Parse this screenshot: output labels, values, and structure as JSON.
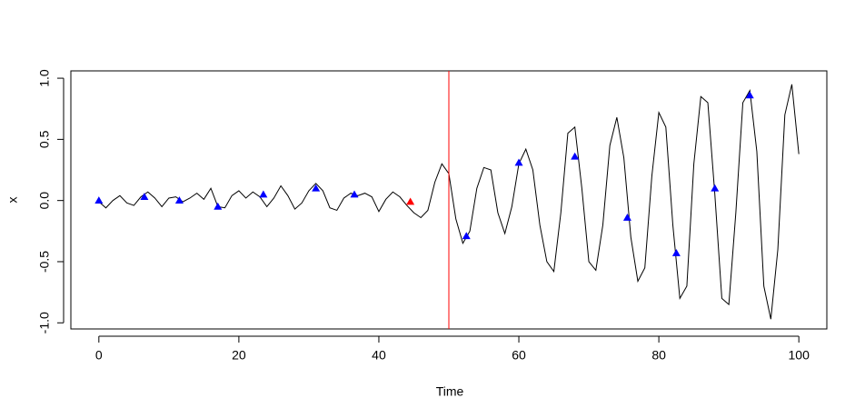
{
  "chart_data": {
    "type": "line",
    "xlabel": "Time",
    "ylabel": "x",
    "xlim": [
      -4,
      104
    ],
    "ylim": [
      -1.05,
      1.06
    ],
    "xticks": [
      0,
      20,
      40,
      60,
      80,
      100
    ],
    "yticks": [
      {
        "value": -1,
        "label": "-1.0"
      },
      -0.5,
      {
        "value": 0,
        "label": "0.0"
      },
      0.5,
      {
        "value": 1,
        "label": "1.0"
      }
    ],
    "vline": {
      "x": 50,
      "color": "#ff0000"
    },
    "series": [
      {
        "color": "#000000",
        "x": [
          0,
          1,
          2,
          3,
          4,
          5,
          6,
          7,
          8,
          9,
          10,
          11,
          12,
          13,
          14,
          15,
          16,
          17,
          18,
          19,
          20,
          21,
          22,
          23,
          24,
          25,
          26,
          27,
          28,
          29,
          30,
          31,
          32,
          33,
          34,
          35,
          36,
          37,
          38,
          39,
          40,
          41,
          42,
          43,
          44,
          45,
          46,
          47,
          48,
          49,
          50,
          51,
          52,
          53,
          54,
          55,
          56,
          57,
          58,
          59,
          60,
          61,
          62,
          63,
          64,
          65,
          66,
          67,
          68,
          69,
          70,
          71,
          72,
          73,
          74,
          75,
          76,
          77,
          78,
          79,
          80,
          81,
          82,
          83,
          84,
          85,
          86,
          87,
          88,
          89,
          90,
          91,
          92,
          93,
          94,
          95,
          96,
          97,
          98,
          99,
          100
        ],
        "values": [
          -0.01,
          -0.06,
          0.0,
          0.04,
          -0.02,
          -0.04,
          0.03,
          0.07,
          0.02,
          -0.05,
          0.02,
          0.03,
          -0.01,
          0.02,
          0.06,
          0.01,
          0.1,
          -0.05,
          -0.06,
          0.04,
          0.08,
          0.02,
          0.07,
          0.03,
          -0.05,
          0.02,
          0.12,
          0.04,
          -0.07,
          -0.02,
          0.08,
          0.14,
          0.08,
          -0.06,
          -0.08,
          0.02,
          0.06,
          0.04,
          0.06,
          0.03,
          -0.09,
          0.01,
          0.07,
          0.03,
          -0.04,
          -0.1,
          -0.14,
          -0.08,
          0.15,
          0.3,
          0.22,
          -0.15,
          -0.35,
          -0.25,
          0.1,
          0.27,
          0.25,
          -0.1,
          -0.27,
          -0.05,
          0.3,
          0.42,
          0.25,
          -0.2,
          -0.5,
          -0.58,
          -0.1,
          0.55,
          0.6,
          0.1,
          -0.5,
          -0.57,
          -0.2,
          0.45,
          0.68,
          0.35,
          -0.3,
          -0.66,
          -0.55,
          0.2,
          0.72,
          0.6,
          -0.2,
          -0.8,
          -0.7,
          0.3,
          0.85,
          0.8,
          0.05,
          -0.8,
          -0.85,
          -0.1,
          0.8,
          0.9,
          0.4,
          -0.7,
          -0.97,
          -0.4,
          0.7,
          0.95,
          0.38
        ]
      },
      {
        "type": "scatter",
        "color": "#0000ff",
        "x": [
          0,
          6.5,
          11.5,
          17,
          23.5,
          31,
          36.5,
          52.5,
          60,
          68,
          75.5,
          82.5,
          88,
          93
        ],
        "values": [
          0.0,
          0.03,
          0.0,
          -0.05,
          0.05,
          0.1,
          0.05,
          -0.29,
          0.31,
          0.36,
          -0.14,
          -0.43,
          0.1,
          0.86
        ]
      },
      {
        "type": "scatter",
        "color": "#ff0000",
        "x": [
          44.5
        ],
        "values": [
          -0.01
        ]
      }
    ]
  }
}
